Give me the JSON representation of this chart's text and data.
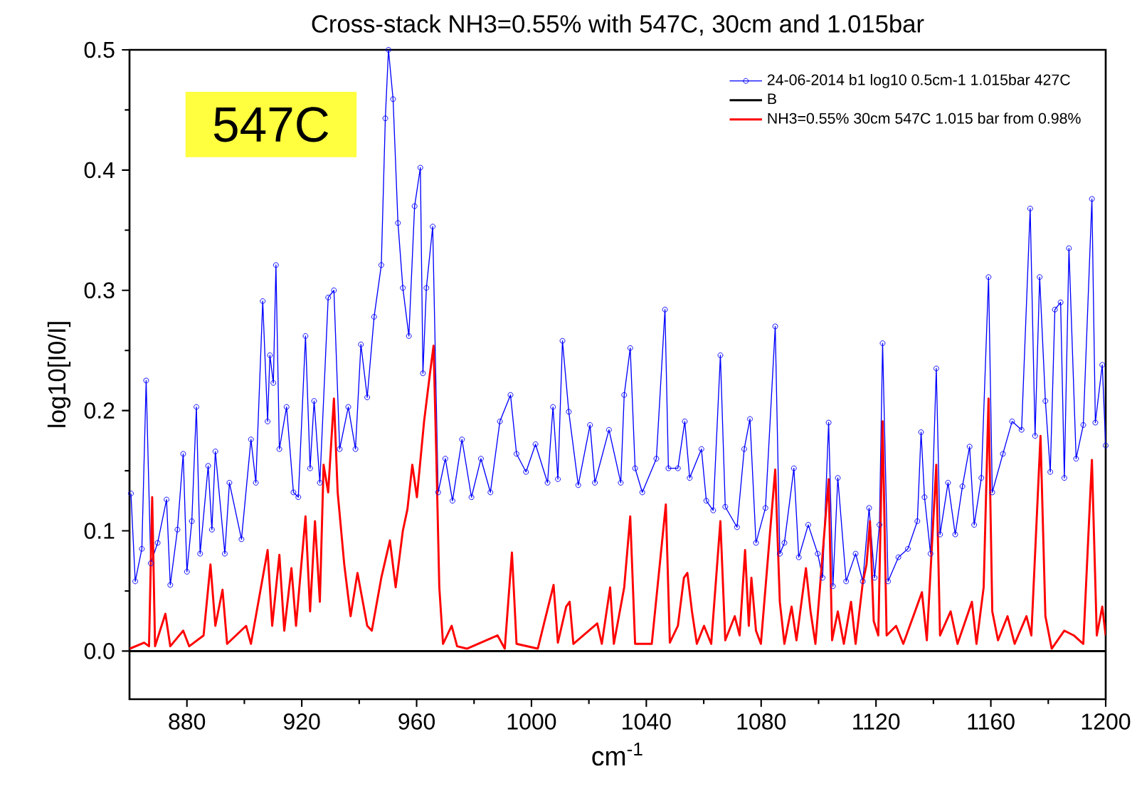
{
  "chart_data": {
    "type": "line",
    "title": "Cross-stack NH3=0.55% with 547C, 30cm and 1.015bar",
    "xlabel": "cm$^{-1}$",
    "ylabel": "log10[I0/I]",
    "annotations": [
      "547C"
    ],
    "xlim": [
      860,
      1200
    ],
    "xticks": [
      880,
      920,
      960,
      1000,
      1040,
      1080,
      1120,
      1160,
      1200
    ],
    "ylim": [
      -0.04,
      0.5
    ],
    "yticks": [
      {
        "value": 0,
        "label": "0.0"
      },
      0.1,
      0.2,
      0.3,
      0.4,
      0.5
    ],
    "legend": "top right",
    "series": [
      {
        "name": "24-06-2014 b1 log10 0.5cm-1 1.015bar 427C",
        "color": "#0000ff",
        "marker": "circle",
        "x": [
          860.5,
          862.0,
          864.3,
          865.8,
          867.4,
          869.8,
          872.9,
          874.2,
          876.7,
          878.7,
          880.0,
          881.7,
          883.3,
          884.6,
          887.4,
          888.7,
          889.9,
          893.2,
          894.8,
          899.0,
          902.3,
          904.0,
          906.4,
          908.1,
          908.9,
          910.1,
          911.0,
          912.2,
          914.7,
          917.1,
          918.8,
          921.3,
          922.9,
          924.3,
          926.3,
          929.2,
          931.2,
          933.2,
          936.2,
          938.7,
          940.6,
          942.8,
          945.2,
          947.7,
          949.1,
          950.2,
          951.8,
          953.5,
          955.2,
          957.3,
          959.3,
          961.3,
          962.2,
          963.4,
          965.6,
          967.5,
          970.0,
          972.5,
          975.8,
          979.1,
          982.4,
          985.7,
          989.0,
          992.7,
          994.8,
          998.1,
          1001.4,
          1005.6,
          1007.5,
          1009.2,
          1010.8,
          1013.0,
          1016.3,
          1020.4,
          1022.1,
          1027.0,
          1031.1,
          1032.3,
          1034.4,
          1036.1,
          1038.6,
          1043.5,
          1046.5,
          1047.7,
          1051.0,
          1053.4,
          1055.1,
          1059.2,
          1060.9,
          1063.3,
          1065.8,
          1067.5,
          1071.6,
          1074.1,
          1076.1,
          1078.2,
          1081.5,
          1084.9,
          1086.5,
          1088.1,
          1091.4,
          1093.1,
          1096.4,
          1099.7,
          1101.4,
          1103.5,
          1105.0,
          1106.7,
          1109.6,
          1112.9,
          1115.4,
          1117.6,
          1119.5,
          1121.2,
          1122.3,
          1124.2,
          1127.8,
          1131.1,
          1134.4,
          1135.7,
          1136.9,
          1139.0,
          1141.0,
          1142.3,
          1145.1,
          1147.6,
          1150.1,
          1152.6,
          1154.2,
          1156.7,
          1159.2,
          1160.5,
          1164.2,
          1167.4,
          1170.7,
          1173.7,
          1175.4,
          1177.0,
          1179.0,
          1180.7,
          1182.3,
          1184.3,
          1185.6,
          1187.2,
          1189.7,
          1192.2,
          1195.2,
          1196.4,
          1198.8,
          1200
        ],
        "values": [
          0.131,
          0.058,
          0.085,
          0.225,
          0.073,
          0.09,
          0.126,
          0.055,
          0.101,
          0.164,
          0.066,
          0.108,
          0.203,
          0.081,
          0.154,
          0.101,
          0.166,
          0.081,
          0.14,
          0.093,
          0.176,
          0.14,
          0.291,
          0.191,
          0.246,
          0.223,
          0.321,
          0.168,
          0.203,
          0.132,
          0.128,
          0.262,
          0.152,
          0.208,
          0.14,
          0.294,
          0.3,
          0.168,
          0.203,
          0.168,
          0.255,
          0.211,
          0.278,
          0.321,
          0.443,
          0.5,
          0.459,
          0.356,
          0.302,
          0.262,
          0.37,
          0.402,
          0.231,
          0.302,
          0.353,
          0.132,
          0.16,
          0.125,
          0.176,
          0.128,
          0.16,
          0.132,
          0.191,
          0.213,
          0.164,
          0.149,
          0.172,
          0.14,
          0.203,
          0.143,
          0.258,
          0.199,
          0.138,
          0.188,
          0.14,
          0.184,
          0.14,
          0.213,
          0.252,
          0.152,
          0.132,
          0.16,
          0.284,
          0.152,
          0.152,
          0.191,
          0.144,
          0.168,
          0.125,
          0.117,
          0.246,
          0.12,
          0.103,
          0.168,
          0.193,
          0.09,
          0.119,
          0.27,
          0.081,
          0.09,
          0.152,
          0.078,
          0.105,
          0.081,
          0.061,
          0.19,
          0.054,
          0.144,
          0.058,
          0.081,
          0.058,
          0.119,
          0.061,
          0.105,
          0.256,
          0.058,
          0.078,
          0.085,
          0.108,
          0.182,
          0.128,
          0.081,
          0.235,
          0.097,
          0.14,
          0.097,
          0.137,
          0.17,
          0.105,
          0.144,
          0.311,
          0.132,
          0.164,
          0.191,
          0.184,
          0.368,
          0.179,
          0.311,
          0.208,
          0.149,
          0.284,
          0.29,
          0.144,
          0.335,
          0.16,
          0.188,
          0.376,
          0.19,
          0.238,
          0.171
        ]
      },
      {
        "name": "B",
        "color": "#000000",
        "marker": "none",
        "x": [
          860,
          1200
        ],
        "values": [
          0,
          0
        ]
      },
      {
        "name": "NH3=0.55% 30cm 547C 1.015 bar from 0.98%",
        "color": "#ff0000",
        "marker": "none",
        "x": [
          860.1,
          865.1,
          866.8,
          867.9,
          868.9,
          872.5,
          874.2,
          878.7,
          880.8,
          885.8,
          888.2,
          889.9,
          892.4,
          894.0,
          900.6,
          902.3,
          908.1,
          909.7,
          912.2,
          913.9,
          916.4,
          918.0,
          921.3,
          922.9,
          924.6,
          926.3,
          927.6,
          929.2,
          931.2,
          932.5,
          934.8,
          937.0,
          939.4,
          942.8,
          944.4,
          947.7,
          950.7,
          952.7,
          955.2,
          956.8,
          958.5,
          960.1,
          962.6,
          964.6,
          965.9,
          966.9,
          967.9,
          969.2,
          972.2,
          974.1,
          977.5,
          988.2,
          990.7,
          993.2,
          994.8,
          1002.2,
          1007.7,
          1009.2,
          1012.1,
          1013.3,
          1014.6,
          1022.9,
          1024.5,
          1027.4,
          1028.7,
          1032.3,
          1034.4,
          1036.1,
          1041.9,
          1046.8,
          1048.2,
          1051.0,
          1053.1,
          1054.3,
          1055.9,
          1057.6,
          1060.1,
          1062.6,
          1065.8,
          1067.5,
          1070.8,
          1072.5,
          1074.4,
          1075.7,
          1076.6,
          1078.2,
          1079.9,
          1084.9,
          1086.5,
          1088.1,
          1090.6,
          1092.3,
          1095.6,
          1097.2,
          1098.9,
          1103.5,
          1104.7,
          1106.7,
          1108.8,
          1111.3,
          1112.9,
          1115.4,
          1116.7,
          1117.9,
          1119.2,
          1120.8,
          1122.3,
          1123.7,
          1127.0,
          1129.5,
          1133.6,
          1136.0,
          1137.7,
          1141.0,
          1142.3,
          1146.0,
          1148.4,
          1153.4,
          1155.0,
          1157.5,
          1159.2,
          1160.5,
          1162.5,
          1165.8,
          1168.3,
          1172.4,
          1174.1,
          1177.3,
          1179.0,
          1181.2,
          1185.6,
          1188.9,
          1192.2,
          1195.2,
          1196.9,
          1198.8,
          1200
        ],
        "values": [
          0.002,
          0.007,
          0.004,
          0.128,
          0.004,
          0.031,
          0.004,
          0.017,
          0.004,
          0.013,
          0.072,
          0.021,
          0.051,
          0.006,
          0.021,
          0.006,
          0.084,
          0.021,
          0.08,
          0.017,
          0.069,
          0.021,
          0.112,
          0.033,
          0.108,
          0.041,
          0.155,
          0.132,
          0.21,
          0.132,
          0.072,
          0.029,
          0.065,
          0.021,
          0.017,
          0.061,
          0.092,
          0.053,
          0.1,
          0.118,
          0.155,
          0.128,
          0.191,
          0.23,
          0.254,
          0.159,
          0.053,
          0.006,
          0.021,
          0.004,
          0.002,
          0.013,
          0.002,
          0.082,
          0.006,
          0.002,
          0.055,
          0.007,
          0.037,
          0.041,
          0.006,
          0.023,
          0.006,
          0.053,
          0.006,
          0.053,
          0.112,
          0.006,
          0.006,
          0.122,
          0.007,
          0.021,
          0.061,
          0.065,
          0.033,
          0.006,
          0.021,
          0.006,
          0.108,
          0.009,
          0.029,
          0.013,
          0.084,
          0.021,
          0.061,
          0.017,
          0.006,
          0.151,
          0.041,
          0.006,
          0.037,
          0.009,
          0.069,
          0.033,
          0.006,
          0.143,
          0.009,
          0.033,
          0.006,
          0.041,
          0.006,
          0.057,
          0.072,
          0.108,
          0.025,
          0.013,
          0.191,
          0.013,
          0.021,
          0.006,
          0.033,
          0.049,
          0.009,
          0.155,
          0.013,
          0.033,
          0.006,
          0.041,
          0.006,
          0.053,
          0.21,
          0.033,
          0.009,
          0.029,
          0.006,
          0.029,
          0.013,
          0.179,
          0.029,
          0.002,
          0.017,
          0.013,
          0.006,
          0.159,
          0.013,
          0.037,
          0.013
        ]
      }
    ]
  }
}
